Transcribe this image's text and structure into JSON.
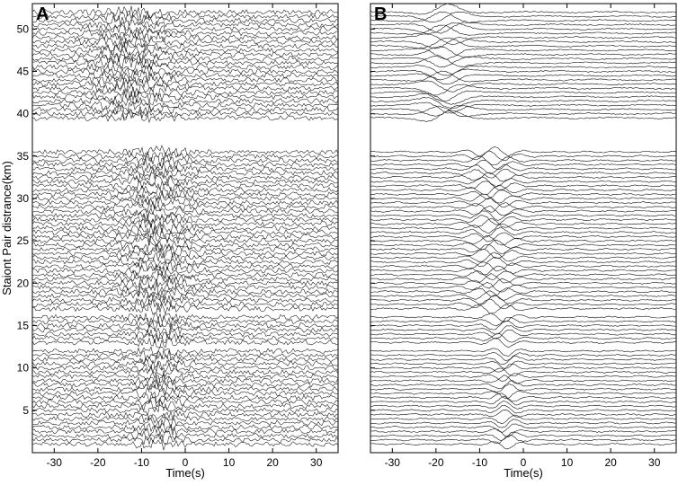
{
  "chart_data": [
    {
      "panel_label": "A",
      "type": "line",
      "description_style": "seismic record section (cross-correlation waveforms)",
      "xlabel": "Time(s)",
      "ylabel": "Staiont Pair distrance(km)",
      "xlim": [
        -35,
        35
      ],
      "ylim": [
        0,
        53
      ],
      "x_ticks": [
        -30,
        -20,
        -10,
        0,
        10,
        20,
        30
      ],
      "y_ticks": [
        5,
        10,
        15,
        20,
        25,
        30,
        35,
        40,
        45,
        50
      ],
      "grid": false,
      "trace_groups": [
        {
          "distance_range_km": [
            1,
            12
          ],
          "signal_window_s": [
            -12,
            0
          ]
        },
        {
          "distance_range_km": [
            13,
            16
          ],
          "signal_window_s": [
            -12,
            0
          ]
        },
        {
          "distance_range_km": [
            17,
            35.5
          ],
          "signal_window_s": [
            -15,
            2
          ]
        },
        {
          "distance_range_km": [
            39.5,
            52
          ],
          "signal_window_s": [
            -22,
            -2
          ]
        }
      ]
    },
    {
      "panel_label": "B",
      "type": "line",
      "description_style": "seismic record section (filtered cross-correlation waveforms)",
      "xlabel": "Time(s)",
      "ylabel": "",
      "xlim": [
        -35,
        35
      ],
      "ylim": [
        0,
        53
      ],
      "x_ticks": [
        -30,
        -20,
        -10,
        0,
        10,
        20,
        30
      ],
      "y_ticks": [
        5,
        10,
        15,
        20,
        25,
        30,
        35,
        40,
        45,
        50
      ],
      "grid": false,
      "trace_groups": [
        {
          "distance_range_km": [
            1,
            12
          ],
          "signal_window_s": [
            -8,
            0
          ]
        },
        {
          "distance_range_km": [
            13,
            16
          ],
          "signal_window_s": [
            -10,
            0
          ]
        },
        {
          "distance_range_km": [
            17,
            35.5
          ],
          "signal_window_s": [
            -14,
            0
          ]
        },
        {
          "distance_range_km": [
            39.5,
            52
          ],
          "signal_window_s": [
            -24,
            -12
          ]
        }
      ]
    }
  ]
}
